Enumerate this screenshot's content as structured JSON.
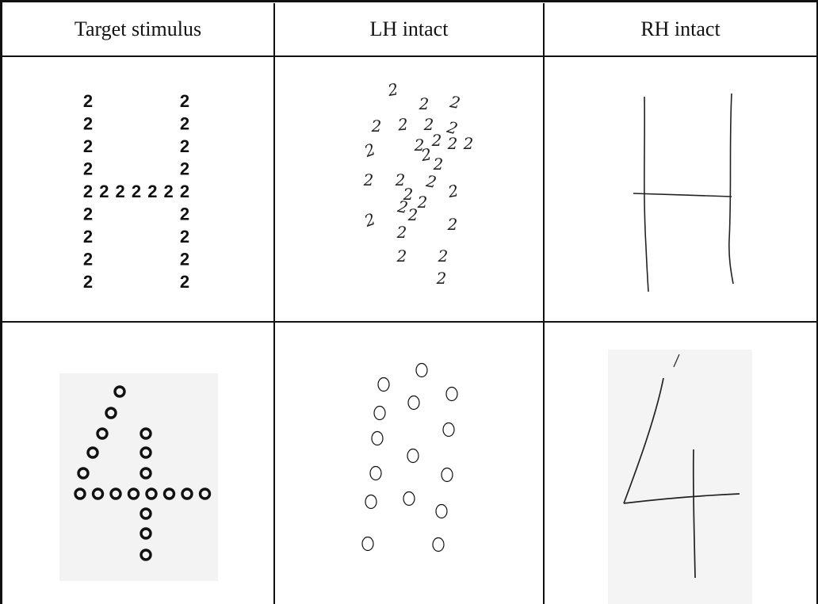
{
  "table": {
    "headers": [
      "Target stimulus",
      "LH intact",
      "RH intact"
    ],
    "rows": [
      {
        "name": "letter-H-of-2s",
        "target_char": "2",
        "lh_char": "2",
        "rh_shape": "H"
      },
      {
        "name": "number-4-of-0s",
        "target_char": "o",
        "lh_char": "o",
        "rh_shape": "4"
      }
    ]
  }
}
